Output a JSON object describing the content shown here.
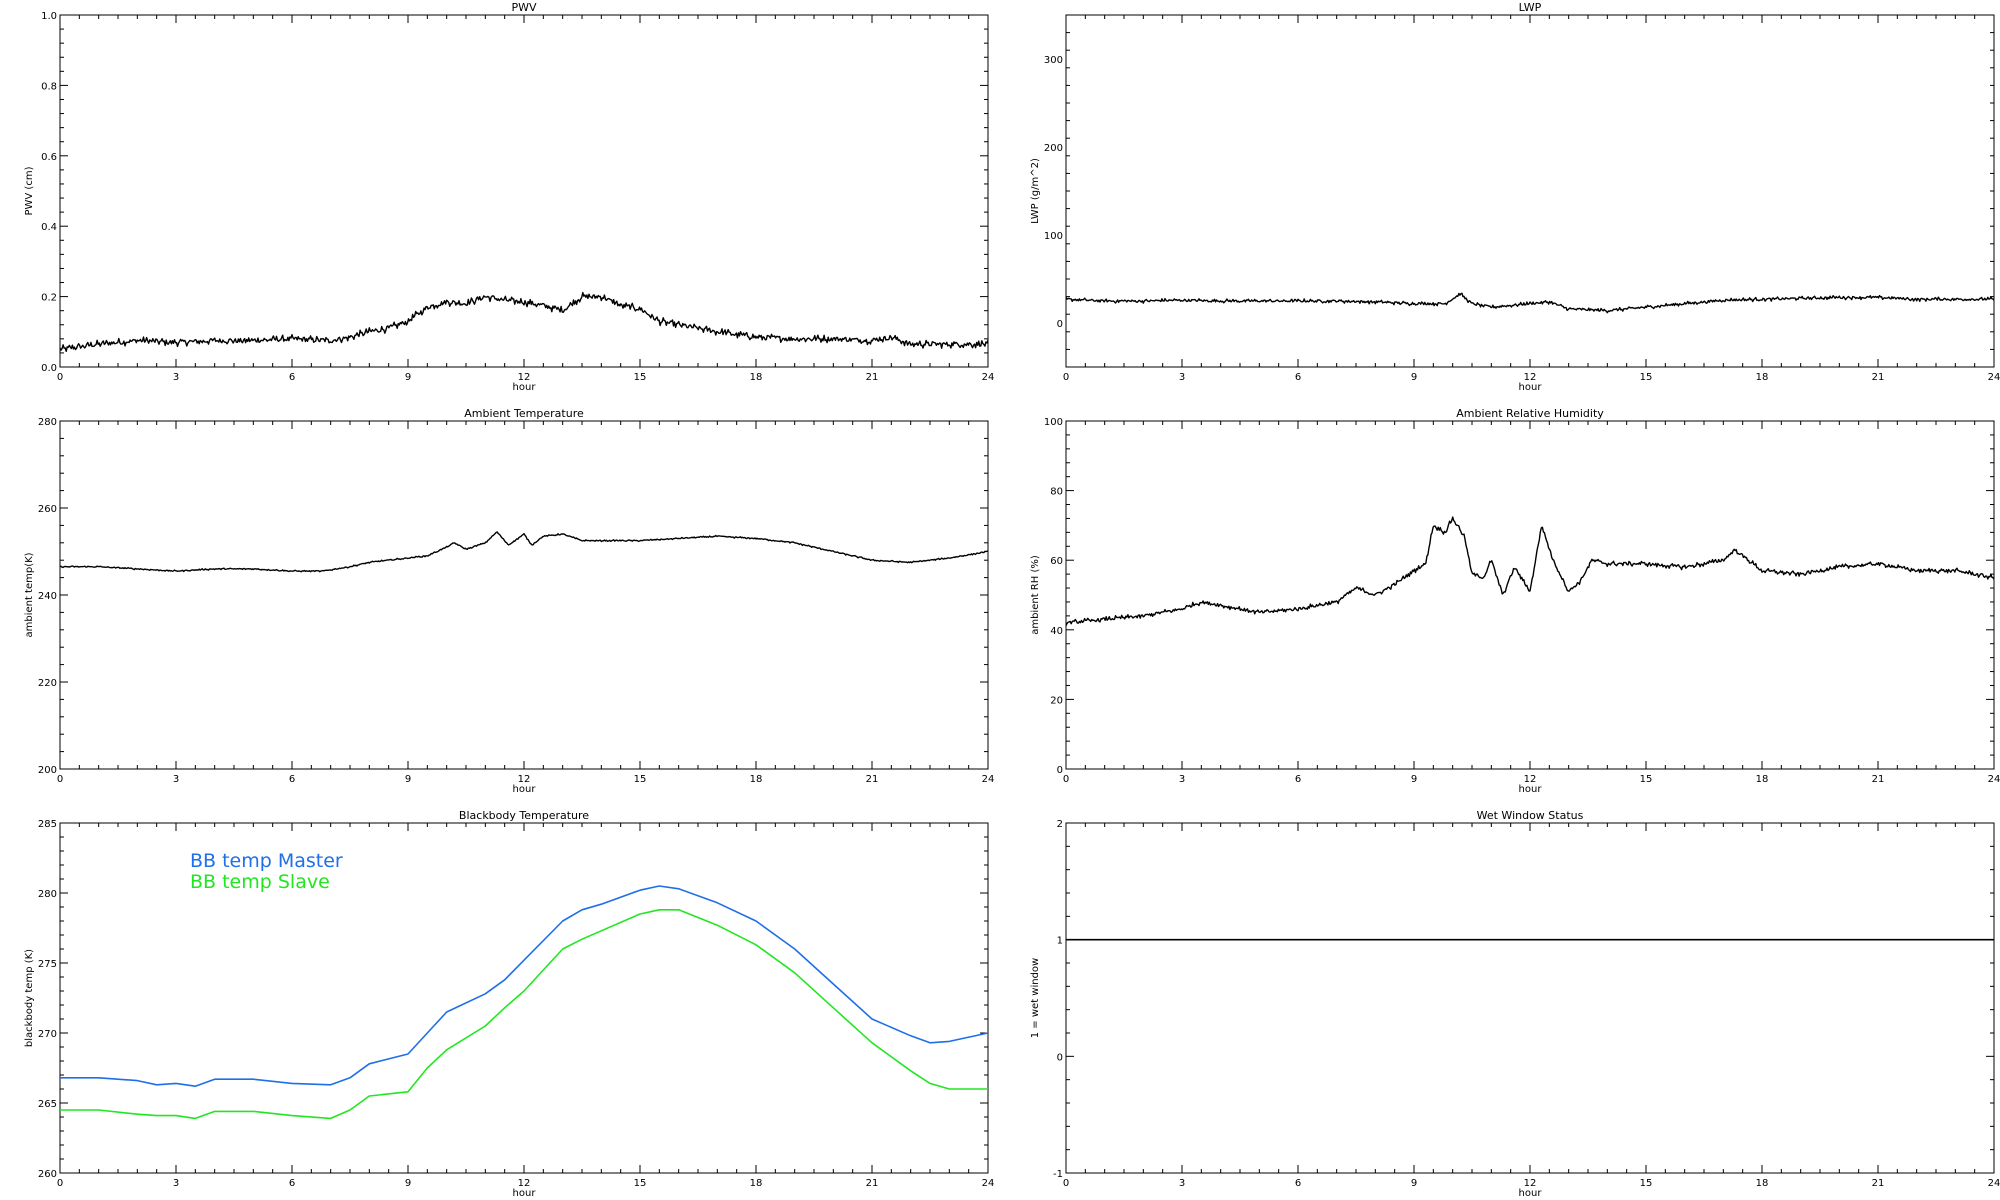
{
  "chart_data": [
    {
      "id": "pwv",
      "type": "line",
      "title": "PWV",
      "xlabel": "hour",
      "ylabel": "PWV (cm)",
      "xlim": [
        0,
        24
      ],
      "ylim": [
        0.0,
        1.0
      ],
      "xticks": [
        0,
        3,
        6,
        9,
        12,
        15,
        18,
        21,
        24
      ],
      "yticks": [
        0.0,
        0.2,
        0.4,
        0.6,
        0.8,
        1.0
      ],
      "ytick_labels": [
        "0.0",
        "0.2",
        "0.4",
        "0.6",
        "0.8",
        "1.0"
      ],
      "noise": 0.006,
      "series": [
        {
          "color": "#000000",
          "x": [
            0,
            1,
            2,
            3,
            4,
            5,
            6,
            7,
            7.5,
            8,
            8.5,
            9,
            9.5,
            10,
            10.5,
            11,
            11.5,
            12,
            12.5,
            13,
            13.5,
            14,
            14.5,
            15,
            15.5,
            16,
            17,
            18,
            19,
            20,
            21,
            21.5,
            22,
            23,
            24
          ],
          "y": [
            0.05,
            0.065,
            0.075,
            0.07,
            0.075,
            0.075,
            0.08,
            0.075,
            0.085,
            0.1,
            0.11,
            0.13,
            0.17,
            0.185,
            0.18,
            0.2,
            0.19,
            0.185,
            0.175,
            0.16,
            0.2,
            0.2,
            0.175,
            0.165,
            0.13,
            0.12,
            0.1,
            0.085,
            0.08,
            0.08,
            0.075,
            0.085,
            0.065,
            0.065,
            0.065
          ]
        }
      ]
    },
    {
      "id": "lwp",
      "type": "line",
      "title": "LWP",
      "xlabel": "hour",
      "ylabel": "LWP (g/m^2)",
      "xlim": [
        0,
        24
      ],
      "ylim": [
        -50,
        350
      ],
      "xticks": [
        0,
        3,
        6,
        9,
        12,
        15,
        18,
        21,
        24
      ],
      "yticks": [
        0,
        100,
        200,
        300
      ],
      "ytick_labels": [
        "0",
        "100",
        "200",
        "300"
      ],
      "noise": 1.2,
      "series": [
        {
          "color": "#000000",
          "x": [
            0,
            1,
            2,
            3,
            4,
            5,
            6,
            7,
            8,
            9,
            9.8,
            10.2,
            10.5,
            11,
            12,
            12.5,
            13,
            14,
            15,
            16,
            17,
            18,
            19,
            20,
            21,
            22,
            23,
            24
          ],
          "y": [
            27,
            25,
            25,
            26,
            25,
            25,
            25,
            25,
            24,
            22,
            22,
            33,
            22,
            18,
            22,
            24,
            16,
            14,
            18,
            22,
            26,
            27,
            28,
            29,
            29,
            27,
            27,
            27
          ]
        }
      ]
    },
    {
      "id": "ambient-temperature",
      "type": "line",
      "title": "Ambient Temperature",
      "xlabel": "hour",
      "ylabel": "ambient temp(K)",
      "xlim": [
        0,
        24
      ],
      "ylim": [
        200,
        280
      ],
      "xticks": [
        0,
        3,
        6,
        9,
        12,
        15,
        18,
        21,
        24
      ],
      "yticks": [
        200,
        220,
        240,
        260,
        280
      ],
      "ytick_labels": [
        "200",
        "220",
        "240",
        "260",
        "280"
      ],
      "noise": 0.1,
      "series": [
        {
          "color": "#000000",
          "x": [
            0,
            1,
            2,
            3,
            4,
            5,
            6,
            6.8,
            7.5,
            8,
            9,
            9.5,
            10,
            10.2,
            10.5,
            11,
            11.3,
            11.6,
            12,
            12.2,
            12.5,
            13,
            13.5,
            14,
            15,
            16,
            17,
            18,
            19,
            20,
            21,
            22,
            23,
            24
          ],
          "y": [
            246.5,
            246.5,
            246,
            245.5,
            246,
            246,
            245.5,
            245.5,
            246.5,
            247.5,
            248.5,
            249,
            251,
            252,
            250.5,
            252,
            254.5,
            251.5,
            254,
            251.5,
            253.5,
            254,
            252.5,
            252.5,
            252.5,
            253,
            253.5,
            253,
            252,
            250,
            248,
            247.5,
            248.5,
            250
          ]
        }
      ]
    },
    {
      "id": "ambient-relative-humidity",
      "type": "line",
      "title": "Ambient Relative Humidity",
      "xlabel": "hour",
      "ylabel": "ambient RH (%)",
      "xlim": [
        0,
        24
      ],
      "ylim": [
        0,
        100
      ],
      "xticks": [
        0,
        3,
        6,
        9,
        12,
        15,
        18,
        21,
        24
      ],
      "yticks": [
        0,
        20,
        40,
        60,
        80,
        100
      ],
      "ytick_labels": [
        "0",
        "20",
        "40",
        "60",
        "80",
        "100"
      ],
      "noise": 0.4,
      "series": [
        {
          "color": "#000000",
          "x": [
            0,
            1,
            2,
            3,
            3.5,
            4,
            5,
            6,
            7,
            7.5,
            8,
            8.5,
            9,
            9.3,
            9.5,
            9.8,
            10,
            10.3,
            10.5,
            10.8,
            11,
            11.3,
            11.6,
            12,
            12.3,
            12.6,
            13,
            13.3,
            13.6,
            14,
            15,
            16,
            17,
            17.3,
            18,
            19,
            20,
            21,
            22,
            23,
            24
          ],
          "y": [
            42,
            43,
            44,
            46,
            48,
            47,
            45,
            46,
            48,
            52,
            50,
            53,
            57,
            59,
            70,
            68,
            72,
            67,
            56,
            55,
            60,
            50,
            58,
            51,
            70,
            60,
            51,
            54,
            60,
            59,
            59,
            58,
            60,
            63,
            57,
            56,
            58,
            59,
            57,
            57,
            55
          ]
        }
      ]
    },
    {
      "id": "blackbody-temperature",
      "type": "line",
      "title": "Blackbody Temperature",
      "xlabel": "hour",
      "ylabel": "blackbody temp (K)",
      "xlim": [
        0,
        24
      ],
      "ylim": [
        260,
        285
      ],
      "xticks": [
        0,
        3,
        6,
        9,
        12,
        15,
        18,
        21,
        24
      ],
      "yticks": [
        260,
        265,
        270,
        275,
        280,
        285
      ],
      "ytick_labels": [
        "260",
        "265",
        "270",
        "275",
        "280",
        "285"
      ],
      "legend": "top-left",
      "noise": 0,
      "series": [
        {
          "name": "BB temp Master",
          "color": "#1e6fe8",
          "x": [
            0,
            1,
            2,
            2.5,
            3,
            3.5,
            4,
            5,
            6,
            7,
            7.5,
            8,
            9,
            9.5,
            10,
            11,
            11.5,
            12,
            13,
            13.5,
            14,
            15,
            15.5,
            16,
            17,
            18,
            19,
            20,
            21,
            22,
            22.5,
            23,
            24
          ],
          "y": [
            266.8,
            266.8,
            266.6,
            266.3,
            266.4,
            266.2,
            266.7,
            266.7,
            266.4,
            266.3,
            266.8,
            267.8,
            268.5,
            270,
            271.5,
            272.8,
            273.8,
            275.2,
            278,
            278.8,
            279.2,
            280.2,
            280.5,
            280.3,
            279.3,
            278,
            276,
            273.5,
            271,
            269.8,
            269.3,
            269.4,
            270
          ]
        },
        {
          "name": "BB temp Slave",
          "color": "#22e622",
          "x": [
            0,
            1,
            2,
            2.5,
            3,
            3.5,
            4,
            5,
            6,
            7,
            7.5,
            8,
            9,
            9.5,
            10,
            11,
            11.5,
            12,
            13,
            13.5,
            14,
            15,
            15.5,
            16,
            17,
            18,
            19,
            20,
            21,
            22,
            22.5,
            23,
            24
          ],
          "y": [
            264.5,
            264.5,
            264.2,
            264.1,
            264.1,
            263.9,
            264.4,
            264.4,
            264.1,
            263.9,
            264.5,
            265.5,
            265.8,
            267.5,
            268.8,
            270.5,
            271.8,
            273,
            276,
            276.7,
            277.3,
            278.5,
            278.8,
            278.8,
            277.7,
            276.3,
            274.3,
            271.8,
            269.3,
            267.3,
            266.4,
            266,
            266
          ]
        }
      ]
    },
    {
      "id": "wet-window-status",
      "type": "line",
      "title": "Wet Window Status",
      "xlabel": "hour",
      "ylabel": "1 = wet window",
      "xlim": [
        0,
        24
      ],
      "ylim": [
        -1,
        2
      ],
      "xticks": [
        0,
        3,
        6,
        9,
        12,
        15,
        18,
        21,
        24
      ],
      "yticks": [
        -1,
        0,
        1,
        2
      ],
      "ytick_labels": [
        "-1",
        "0",
        "1",
        "2"
      ],
      "noise": 0,
      "series": [
        {
          "color": "#000000",
          "x": [
            0,
            24
          ],
          "y": [
            1,
            1
          ]
        }
      ]
    }
  ]
}
